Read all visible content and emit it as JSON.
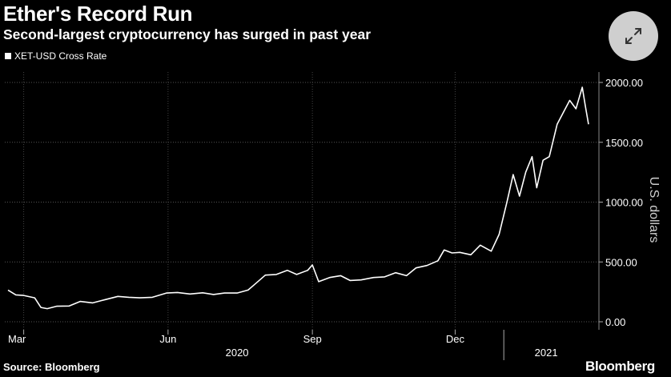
{
  "header": {
    "title": "Ether's Record Run",
    "subtitle": "Second-largest cryptocurrency has surged in past year"
  },
  "expand_button": {
    "icon": "expand-arrows-icon",
    "background": "#cfcfcf"
  },
  "footer": {
    "source": "Source: Bloomberg",
    "brand": "Bloomberg"
  },
  "chart_data": {
    "type": "line",
    "title": "Ether's Record Run",
    "subtitle": "Second-largest cryptocurrency has surged in past year",
    "ylabel": "U.S. dollars",
    "ylim": [
      0,
      2000
    ],
    "y_ticks": [
      "2000.00",
      "1500.00",
      "1000.00",
      "500.00",
      "0.00"
    ],
    "y_tick_values": [
      2000,
      1500,
      1000,
      500,
      0
    ],
    "x_ticks": [
      "Mar",
      "Jun",
      "Sep",
      "Dec"
    ],
    "x_tick_dates": [
      "2020-03-01",
      "2020-06-01",
      "2020-09-01",
      "2020-12-01"
    ],
    "x_range": [
      "2020-02-20",
      "2021-02-24"
    ],
    "year_labels": [
      {
        "label": "2020",
        "date": "2020-07-15"
      },
      {
        "label": "2021",
        "date": "2021-01-28"
      }
    ],
    "year_divider_date": "2021-01-01",
    "grid": true,
    "axis_position": "right",
    "series": [
      {
        "name": "XET-USD Cross Rate",
        "color": "#ffffff",
        "points": [
          [
            "2020-02-20",
            265
          ],
          [
            "2020-02-25",
            225
          ],
          [
            "2020-03-01",
            220
          ],
          [
            "2020-03-08",
            200
          ],
          [
            "2020-03-12",
            120
          ],
          [
            "2020-03-16",
            110
          ],
          [
            "2020-03-22",
            130
          ],
          [
            "2020-03-30",
            132
          ],
          [
            "2020-04-06",
            170
          ],
          [
            "2020-04-14",
            158
          ],
          [
            "2020-04-22",
            185
          ],
          [
            "2020-04-30",
            212
          ],
          [
            "2020-05-07",
            205
          ],
          [
            "2020-05-14",
            200
          ],
          [
            "2020-05-22",
            205
          ],
          [
            "2020-05-31",
            240
          ],
          [
            "2020-06-07",
            245
          ],
          [
            "2020-06-15",
            232
          ],
          [
            "2020-06-23",
            242
          ],
          [
            "2020-06-30",
            228
          ],
          [
            "2020-07-07",
            240
          ],
          [
            "2020-07-15",
            240
          ],
          [
            "2020-07-22",
            265
          ],
          [
            "2020-07-26",
            310
          ],
          [
            "2020-08-02",
            390
          ],
          [
            "2020-08-09",
            395
          ],
          [
            "2020-08-16",
            430
          ],
          [
            "2020-08-22",
            395
          ],
          [
            "2020-08-29",
            430
          ],
          [
            "2020-09-01",
            475
          ],
          [
            "2020-09-05",
            335
          ],
          [
            "2020-09-12",
            370
          ],
          [
            "2020-09-19",
            385
          ],
          [
            "2020-09-25",
            345
          ],
          [
            "2020-10-02",
            350
          ],
          [
            "2020-10-10",
            370
          ],
          [
            "2020-10-17",
            375
          ],
          [
            "2020-10-24",
            410
          ],
          [
            "2020-10-31",
            385
          ],
          [
            "2020-11-06",
            450
          ],
          [
            "2020-11-13",
            470
          ],
          [
            "2020-11-20",
            510
          ],
          [
            "2020-11-24",
            600
          ],
          [
            "2020-11-29",
            575
          ],
          [
            "2020-12-04",
            580
          ],
          [
            "2020-12-11",
            560
          ],
          [
            "2020-12-17",
            640
          ],
          [
            "2020-12-24",
            590
          ],
          [
            "2020-12-29",
            730
          ],
          [
            "2021-01-03",
            1000
          ],
          [
            "2021-01-07",
            1230
          ],
          [
            "2021-01-11",
            1050
          ],
          [
            "2021-01-15",
            1250
          ],
          [
            "2021-01-19",
            1380
          ],
          [
            "2021-01-22",
            1120
          ],
          [
            "2021-01-26",
            1350
          ],
          [
            "2021-01-30",
            1380
          ],
          [
            "2021-02-04",
            1650
          ],
          [
            "2021-02-08",
            1750
          ],
          [
            "2021-02-12",
            1850
          ],
          [
            "2021-02-16",
            1780
          ],
          [
            "2021-02-20",
            1960
          ],
          [
            "2021-02-22",
            1800
          ],
          [
            "2021-02-24",
            1650
          ]
        ]
      }
    ]
  }
}
